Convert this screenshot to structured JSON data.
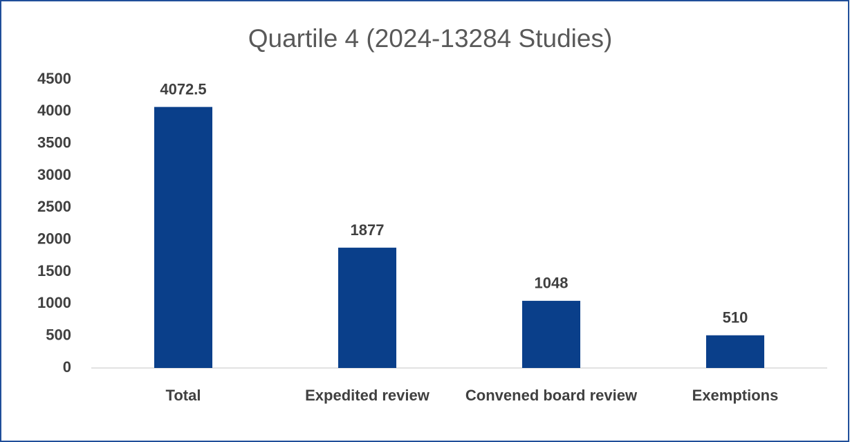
{
  "chart_data": {
    "type": "bar",
    "title": "Quartile 4 (2024-13284 Studies)",
    "categories": [
      "Total",
      "Expedited review",
      "Convened board review",
      "Exemptions"
    ],
    "values": [
      4072.5,
      1877,
      1048,
      510
    ],
    "color": "#0a3f8a",
    "ylim": [
      0,
      4500
    ],
    "yticks": [
      0,
      500,
      1000,
      1500,
      2000,
      2500,
      3000,
      3500,
      4000,
      4500
    ]
  }
}
